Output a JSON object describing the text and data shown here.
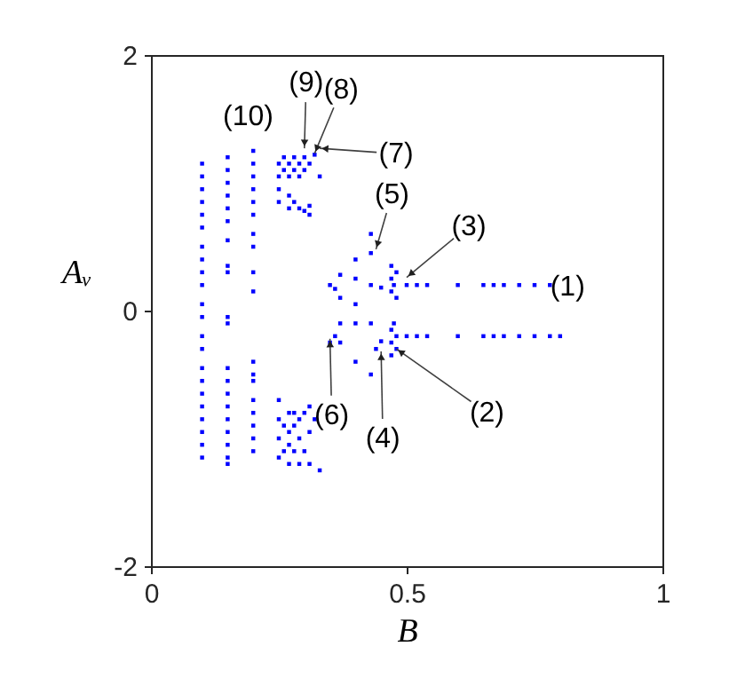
{
  "chart_data": {
    "type": "scatter",
    "xlabel": "B",
    "ylabel": "Aᵥ",
    "xlim": [
      0,
      1
    ],
    "ylim": [
      -2,
      2
    ],
    "xticks": [
      0,
      0.5,
      1
    ],
    "yticks": [
      -2,
      0,
      2
    ],
    "grid": false,
    "marker": "square",
    "series": [
      {
        "color": "#0000ff",
        "x": [
          0.1,
          0.1,
          0.1,
          0.1,
          0.1,
          0.1,
          0.1,
          0.1,
          0.1,
          0.1,
          0.1,
          0.1,
          0.1,
          0.1,
          0.1,
          0.1,
          0.1,
          0.1,
          0.1,
          0.1,
          0.1,
          0.1,
          0.15,
          0.15,
          0.15,
          0.15,
          0.15,
          0.15,
          0.15,
          0.15,
          0.15,
          0.15,
          0.15,
          0.15,
          0.15,
          0.15,
          0.15,
          0.15,
          0.15,
          0.15,
          0.15,
          0.15,
          0.2,
          0.2,
          0.2,
          0.2,
          0.2,
          0.2,
          0.2,
          0.2,
          0.2,
          0.2,
          0.2,
          0.2,
          0.2,
          0.2,
          0.2,
          0.2,
          0.2,
          0.2,
          0.25,
          0.25,
          0.25,
          0.25,
          0.26,
          0.26,
          0.27,
          0.27,
          0.27,
          0.27,
          0.28,
          0.28,
          0.28,
          0.29,
          0.29,
          0.29,
          0.3,
          0.3,
          0.3,
          0.31,
          0.31,
          0.31,
          0.32,
          0.33,
          0.25,
          0.25,
          0.25,
          0.25,
          0.26,
          0.26,
          0.27,
          0.27,
          0.27,
          0.27,
          0.28,
          0.28,
          0.28,
          0.29,
          0.29,
          0.29,
          0.3,
          0.3,
          0.31,
          0.31,
          0.31,
          0.32,
          0.33,
          0.35,
          0.36,
          0.36,
          0.35,
          0.37,
          0.37,
          0.37,
          0.37,
          0.4,
          0.4,
          0.4,
          0.4,
          0.4,
          0.43,
          0.43,
          0.43,
          0.43,
          0.43,
          0.45,
          0.45,
          0.44,
          0.47,
          0.47,
          0.47,
          0.475,
          0.48,
          0.48,
          0.47,
          0.47,
          0.47,
          0.48,
          0.48,
          0.475,
          0.5,
          0.52,
          0.54,
          0.6,
          0.65,
          0.67,
          0.69,
          0.72,
          0.75,
          0.78,
          0.5,
          0.52,
          0.54,
          0.6,
          0.65,
          0.67,
          0.69,
          0.72,
          0.75,
          0.78,
          0.8
        ],
        "values": [
          1.15,
          1.05,
          0.95,
          0.85,
          0.75,
          0.65,
          0.5,
          0.4,
          0.3,
          0.2,
          0.05,
          -0.05,
          -0.2,
          -0.3,
          -0.45,
          -0.55,
          -0.65,
          -0.75,
          -0.85,
          -0.95,
          -1.05,
          -1.15,
          1.2,
          1.1,
          1.0,
          0.9,
          0.8,
          0.7,
          0.55,
          0.35,
          0.3,
          -0.05,
          -0.1,
          -0.45,
          -0.55,
          -0.65,
          -0.75,
          -0.85,
          -0.95,
          -1.05,
          -1.15,
          -1.2,
          1.25,
          1.15,
          1.05,
          0.95,
          0.85,
          0.75,
          0.6,
          0.5,
          0.3,
          0.15,
          -0.4,
          -0.5,
          -0.55,
          -0.7,
          -0.8,
          -0.9,
          -1.0,
          -1.1,
          1.15,
          1.05,
          0.95,
          0.85,
          1.2,
          1.1,
          1.15,
          1.05,
          0.9,
          0.8,
          1.2,
          1.1,
          0.85,
          1.15,
          1.05,
          0.8,
          1.2,
          1.1,
          0.78,
          1.15,
          0.82,
          0.75,
          1.22,
          1.05,
          -0.7,
          -0.85,
          -1.0,
          -1.15,
          -0.9,
          -1.1,
          -0.8,
          -0.95,
          -1.05,
          -1.2,
          -0.8,
          -0.9,
          -1.1,
          -0.85,
          -1.0,
          -1.2,
          -0.8,
          -1.1,
          -0.75,
          -0.95,
          -1.2,
          -0.85,
          -1.25,
          0.2,
          0.17,
          -0.2,
          -0.25,
          0.28,
          0.1,
          -0.1,
          -0.25,
          0.4,
          0.25,
          0.05,
          -0.1,
          -0.4,
          0.6,
          0.45,
          0.2,
          -0.1,
          -0.5,
          0.18,
          -0.24,
          -0.3,
          0.15,
          0.25,
          0.35,
          0.2,
          0.1,
          0.3,
          -0.15,
          -0.25,
          -0.35,
          -0.2,
          -0.3,
          -0.1,
          0.2,
          0.2,
          0.2,
          0.2,
          0.2,
          0.2,
          0.2,
          0.2,
          0.2,
          0.2,
          -0.2,
          -0.2,
          -0.2,
          -0.2,
          -0.2,
          -0.2,
          -0.2,
          -0.2,
          -0.2,
          -0.2,
          -0.2
        ]
      }
    ],
    "annotations": [
      {
        "text": "(1)",
        "x": 0.78,
        "y": 0.2
      },
      {
        "text": "(2)",
        "x": 0.48,
        "y": -0.3
      },
      {
        "text": "(3)",
        "x": 0.5,
        "y": 0.26
      },
      {
        "text": "(4)",
        "x": 0.45,
        "y": -0.32
      },
      {
        "text": "(5)",
        "x": 0.44,
        "y": 0.48
      },
      {
        "text": "(6)",
        "x": 0.35,
        "y": -0.22
      },
      {
        "text": "(7)",
        "x": 0.33,
        "y": 1.27
      },
      {
        "text": "(8)",
        "x": 0.32,
        "y": 1.23
      },
      {
        "text": "(9)",
        "x": 0.3,
        "y": 1.27
      },
      "(10)"
    ]
  }
}
